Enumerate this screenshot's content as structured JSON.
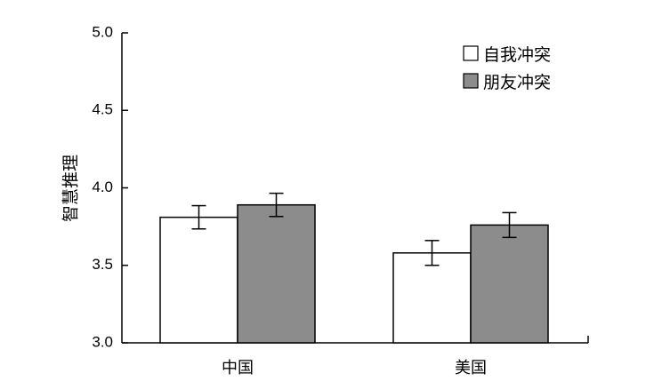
{
  "chart_data": {
    "type": "bar",
    "title": "",
    "xlabel": "",
    "ylabel": "智慧推理",
    "ylim": [
      3.0,
      5.0
    ],
    "yticks": [
      "3.0",
      "3.5",
      "4.0",
      "4.5",
      "5.0"
    ],
    "categories": [
      "中国",
      "美国"
    ],
    "series": [
      {
        "name": "自我冲突",
        "values": [
          3.81,
          3.58
        ],
        "errors": [
          0.075,
          0.08
        ],
        "color": "#ffffff"
      },
      {
        "name": "朋友冲突",
        "values": [
          3.89,
          3.76
        ],
        "errors": [
          0.075,
          0.08
        ],
        "color": "#8c8c8c"
      }
    ],
    "legend_position": "top-right",
    "grid": false
  }
}
